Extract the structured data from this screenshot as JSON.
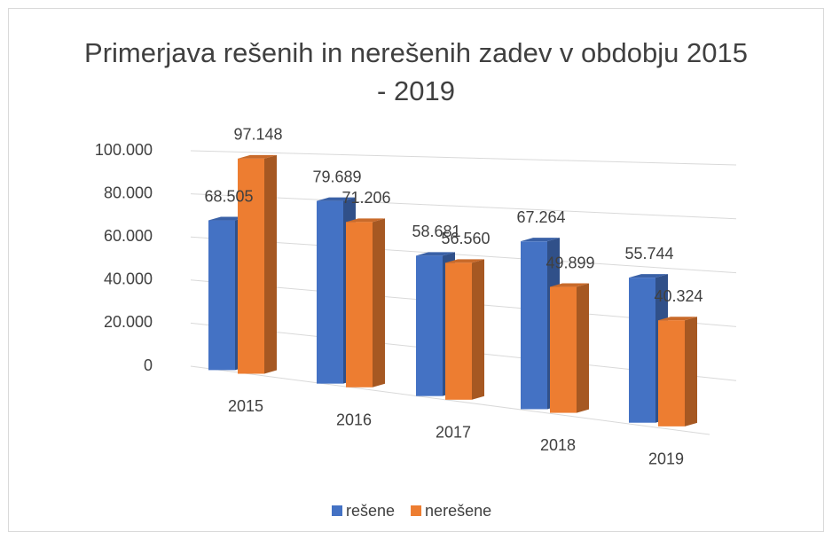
{
  "chart_data": {
    "type": "bar3d",
    "title": "Primerjava rešenih in nerešenih zadev v obdobju 2015 - 2019",
    "categories": [
      "2015",
      "2016",
      "2017",
      "2018",
      "2019"
    ],
    "series": [
      {
        "name": "rešene",
        "color": "#4472c4",
        "values": [
          68505,
          79689,
          58681,
          67264,
          55744
        ],
        "value_labels": [
          "68.505",
          "79.689",
          "58.681",
          "67.264",
          "55.744"
        ]
      },
      {
        "name": "nerešene",
        "color": "#ed7d31",
        "values": [
          97148,
          71206,
          56560,
          49899,
          40324
        ],
        "value_labels": [
          "97.148",
          "71.206",
          "56.560",
          "49.899",
          "40.324"
        ]
      }
    ],
    "ylim": [
      0,
      100000
    ],
    "yticks": [
      0,
      {
        "value": 20000,
        "label": "20.000"
      },
      {
        "value": 40000,
        "label": "40.000"
      },
      {
        "value": 60000,
        "label": "60.000"
      },
      {
        "value": 80000,
        "label": "80.000"
      },
      {
        "value": 100000,
        "label": "100.000"
      }
    ],
    "grid": true,
    "legend": "bottom"
  }
}
